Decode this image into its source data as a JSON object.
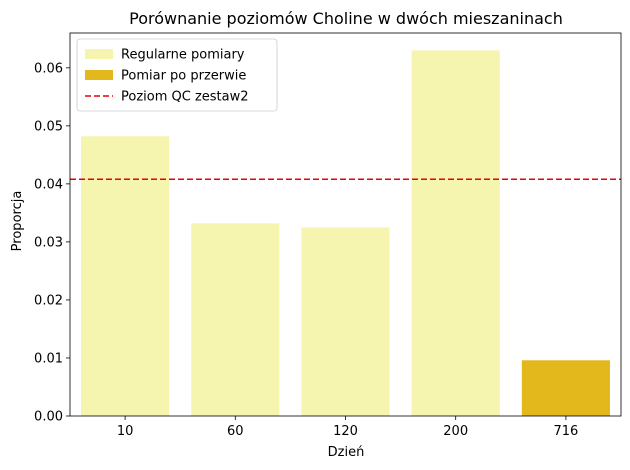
{
  "chart_data": {
    "type": "bar",
    "title": "Porównanie poziomów Choline w dwóch mieszaninach",
    "xlabel": "Dzień",
    "ylabel": "Proporcja",
    "categories": [
      "10",
      "60",
      "120",
      "200",
      "716"
    ],
    "values": [
      0.0482,
      0.0332,
      0.0325,
      0.063,
      0.0096
    ],
    "bar_groups": [
      "regular",
      "regular",
      "regular",
      "regular",
      "break"
    ],
    "ylim": [
      0,
      0.066
    ],
    "yticks": [
      0.0,
      0.01,
      0.02,
      0.03,
      0.04,
      0.05,
      0.06
    ],
    "ytick_labels": [
      "0.00",
      "0.01",
      "0.02",
      "0.03",
      "0.04",
      "0.05",
      "0.06"
    ],
    "reference_line": {
      "value": 0.0408,
      "label": "Poziom QC zestaw2",
      "color": "#e8000b",
      "style": "dashed"
    },
    "legend": {
      "placement": "top-left",
      "entries": [
        {
          "label": "Regularne pomiary",
          "color": "#f5f5b0",
          "kind": "patch"
        },
        {
          "label": "Pomiar po przerwie",
          "color": "#e3b81d",
          "kind": "patch"
        },
        {
          "label": "Poziom QC zestaw2",
          "color": "#e8000b",
          "kind": "dashed-line"
        }
      ]
    },
    "colors": {
      "regular": "#f5f5b0",
      "break": "#e3b81d"
    },
    "grid": false
  }
}
